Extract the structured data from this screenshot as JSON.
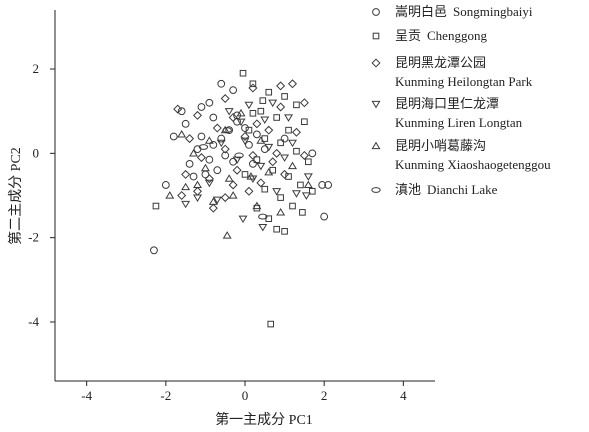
{
  "chart_data": {
    "type": "scatter",
    "xlabel": "第一主成分 PC1",
    "ylabel": "第二主成分 PC2",
    "xlim": [
      -4.8,
      4.8
    ],
    "ylim": [
      -5.4,
      3.4
    ],
    "xticks": [
      -4,
      -2,
      0,
      2,
      4
    ],
    "yticks": [
      -4,
      -2,
      0,
      2
    ],
    "grid": false,
    "legend_position": "top-right",
    "series": [
      {
        "name": "嵩明白邑 Songmingbaiyi",
        "marker": "circle",
        "points": [
          [
            -0.6,
            1.65
          ],
          [
            -0.3,
            1.5
          ],
          [
            -1.6,
            1.0
          ],
          [
            -1.1,
            1.1
          ],
          [
            -0.9,
            1.2
          ],
          [
            -1.5,
            0.7
          ],
          [
            -1.8,
            0.4
          ],
          [
            -1.1,
            0.4
          ],
          [
            -0.8,
            0.2
          ],
          [
            -0.2,
            0.75
          ],
          [
            -0.4,
            0.55
          ],
          [
            -0.6,
            0.35
          ],
          [
            -1.2,
            0.1
          ],
          [
            -1.4,
            -0.25
          ],
          [
            -0.9,
            -0.15
          ],
          [
            -0.7,
            -0.4
          ],
          [
            -0.3,
            -0.2
          ],
          [
            0.1,
            0.2
          ],
          [
            0.3,
            0.45
          ],
          [
            0.5,
            0.1
          ],
          [
            0.2,
            -0.25
          ],
          [
            -0.5,
            -0.05
          ],
          [
            -1.3,
            -0.55
          ],
          [
            -1.0,
            -0.5
          ],
          [
            -0.2,
            0.9
          ],
          [
            0.0,
            0.6
          ],
          [
            1.0,
            0.35
          ],
          [
            1.7,
            0.0
          ],
          [
            1.95,
            -0.75
          ],
          [
            2.1,
            -0.75
          ],
          [
            2.0,
            -1.5
          ],
          [
            -2.0,
            -0.75
          ],
          [
            -2.3,
            -2.3
          ],
          [
            -0.8,
            0.85
          ]
        ]
      },
      {
        "name": "呈贡 Chenggong",
        "marker": "square",
        "points": [
          [
            -0.05,
            1.9
          ],
          [
            0.2,
            1.65
          ],
          [
            0.6,
            1.45
          ],
          [
            1.0,
            1.35
          ],
          [
            1.3,
            1.15
          ],
          [
            0.4,
            1.0
          ],
          [
            0.8,
            0.85
          ],
          [
            1.5,
            0.75
          ],
          [
            0.1,
            0.55
          ],
          [
            0.5,
            0.35
          ],
          [
            0.9,
            0.25
          ],
          [
            1.3,
            0.05
          ],
          [
            1.6,
            -0.2
          ],
          [
            0.3,
            -0.15
          ],
          [
            0.7,
            -0.4
          ],
          [
            1.1,
            -0.55
          ],
          [
            1.4,
            -0.75
          ],
          [
            0.5,
            -0.85
          ],
          [
            0.9,
            -1.05
          ],
          [
            1.2,
            -1.25
          ],
          [
            0.3,
            -1.3
          ],
          [
            0.6,
            -1.55
          ],
          [
            0.8,
            -1.8
          ],
          [
            1.0,
            -1.85
          ],
          [
            1.45,
            -1.4
          ],
          [
            -2.25,
            -1.25
          ],
          [
            0.65,
            -4.05
          ],
          [
            0.2,
            0.95
          ],
          [
            1.1,
            0.55
          ],
          [
            0.0,
            -0.5
          ],
          [
            1.7,
            -0.9
          ],
          [
            0.45,
            1.25
          ]
        ]
      },
      {
        "name": "昆明黑龙潭公园 Kunming Heilongtan Park",
        "marker": "diamond",
        "points": [
          [
            -1.7,
            1.05
          ],
          [
            -1.2,
            0.9
          ],
          [
            -0.5,
            1.3
          ],
          [
            0.2,
            1.55
          ],
          [
            0.9,
            1.6
          ],
          [
            1.2,
            1.65
          ],
          [
            1.5,
            1.2
          ],
          [
            -0.3,
            0.85
          ],
          [
            0.3,
            0.7
          ],
          [
            0.9,
            1.1
          ],
          [
            -1.4,
            0.35
          ],
          [
            -0.7,
            0.6
          ],
          [
            0.0,
            0.4
          ],
          [
            0.6,
            0.55
          ],
          [
            1.3,
            0.5
          ],
          [
            -1.1,
            -0.1
          ],
          [
            -0.5,
            0.1
          ],
          [
            0.2,
            -0.05
          ],
          [
            0.8,
            0.0
          ],
          [
            1.5,
            -0.05
          ],
          [
            -1.5,
            -0.5
          ],
          [
            -0.9,
            -0.6
          ],
          [
            -0.2,
            -0.4
          ],
          [
            0.4,
            -0.7
          ],
          [
            1.0,
            -0.5
          ],
          [
            -1.2,
            -0.9
          ],
          [
            -0.5,
            -1.05
          ],
          [
            0.1,
            -0.9
          ],
          [
            -0.8,
            -1.3
          ],
          [
            -1.6,
            -1.0
          ],
          [
            -0.3,
            -0.75
          ],
          [
            0.7,
            -0.2
          ]
        ]
      },
      {
        "name": "昆明海口里仁龙潭 Kunming Liren Longtan",
        "marker": "triangle-down",
        "points": [
          [
            -0.4,
            1.0
          ],
          [
            0.1,
            1.15
          ],
          [
            0.7,
            1.2
          ],
          [
            -0.1,
            0.75
          ],
          [
            0.5,
            0.8
          ],
          [
            1.1,
            0.85
          ],
          [
            -0.6,
            0.25
          ],
          [
            0.0,
            0.3
          ],
          [
            0.6,
            0.15
          ],
          [
            1.2,
            0.25
          ],
          [
            -0.2,
            -0.15
          ],
          [
            0.4,
            -0.3
          ],
          [
            1.0,
            -0.1
          ],
          [
            1.6,
            -0.55
          ],
          [
            0.2,
            -0.6
          ],
          [
            0.8,
            -0.9
          ],
          [
            1.3,
            -0.95
          ],
          [
            -1.2,
            -1.05
          ],
          [
            -0.7,
            -1.1
          ],
          [
            -1.5,
            -1.2
          ],
          [
            -0.05,
            -1.55
          ],
          [
            0.45,
            -1.75
          ],
          [
            1.55,
            -1.0
          ],
          [
            -0.9,
            -0.7
          ]
        ]
      },
      {
        "name": "昆明小哨葛藤沟 Kunming Xiaoshaogetenggou",
        "marker": "triangle-up",
        "points": [
          [
            -1.6,
            0.45
          ],
          [
            -1.3,
            0.0
          ],
          [
            -0.9,
            0.3
          ],
          [
            -0.5,
            0.55
          ],
          [
            -0.1,
            0.95
          ],
          [
            0.4,
            0.3
          ],
          [
            -1.0,
            -0.35
          ],
          [
            -0.4,
            -0.6
          ],
          [
            0.15,
            -0.55
          ],
          [
            0.6,
            -0.45
          ],
          [
            1.2,
            -0.3
          ],
          [
            1.6,
            -0.75
          ],
          [
            -1.5,
            -0.8
          ],
          [
            -1.9,
            -1.0
          ],
          [
            -1.2,
            -0.75
          ],
          [
            -0.8,
            -1.15
          ],
          [
            -0.3,
            -1.0
          ],
          [
            0.3,
            -1.25
          ],
          [
            0.9,
            -1.4
          ],
          [
            -0.45,
            -1.95
          ]
        ]
      },
      {
        "name": "滇池 Dianchi Lake",
        "marker": "ellipse",
        "points": [
          [
            -0.45,
            0.55
          ],
          [
            -0.15,
            -0.05
          ],
          [
            0.45,
            -1.5
          ],
          [
            -1.05,
            0.15
          ]
        ]
      }
    ],
    "legend": [
      {
        "marker": "circle",
        "zh": "嵩明白邑",
        "en": "Songmingbaiyi"
      },
      {
        "marker": "square",
        "zh": "呈贡",
        "en": "Chenggong"
      },
      {
        "marker": "diamond",
        "zh": "昆明黑龙潭公园",
        "en": "Kunming Heilongtan Park"
      },
      {
        "marker": "triangle-down",
        "zh": "昆明海口里仁龙潭",
        "en": "Kunming Liren Longtan"
      },
      {
        "marker": "triangle-up",
        "zh": "昆明小哨葛藤沟",
        "en": "Kunming Xiaoshaogetenggou"
      },
      {
        "marker": "ellipse",
        "zh": "滇池",
        "en": "Dianchi Lake"
      }
    ]
  }
}
